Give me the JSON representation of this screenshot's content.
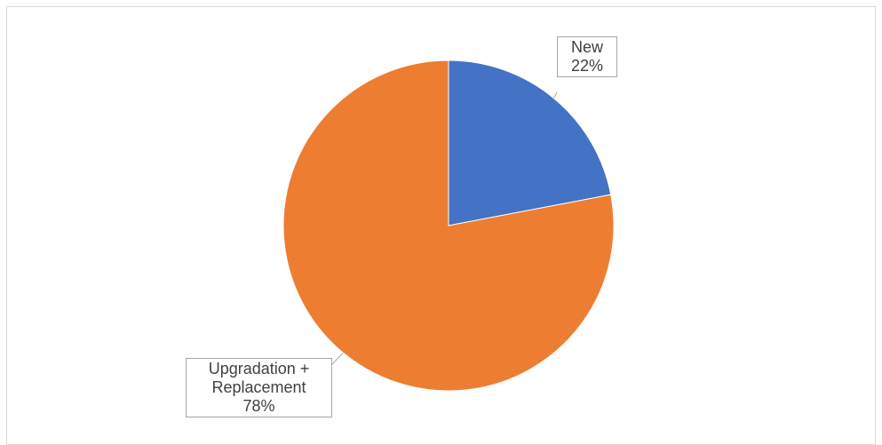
{
  "chart_data": {
    "type": "pie",
    "title": "",
    "categories": [
      "New",
      "Upgradation + Replacement"
    ],
    "values": [
      22,
      78
    ],
    "unit": "%",
    "start_angle_deg": 0,
    "direction": "clockwise",
    "colors": [
      "#4472c4",
      "#ed7d31"
    ],
    "legend": "none",
    "data_labels": [
      {
        "lines": [
          "New"
        ],
        "percent": "22%"
      },
      {
        "lines": [
          "Upgradation +",
          "Replacement"
        ],
        "percent": "78%"
      }
    ]
  }
}
